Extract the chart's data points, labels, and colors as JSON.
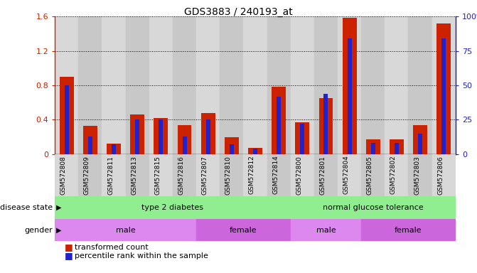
{
  "title": "GDS3883 / 240193_at",
  "samples": [
    "GSM572808",
    "GSM572809",
    "GSM572811",
    "GSM572813",
    "GSM572815",
    "GSM572816",
    "GSM572807",
    "GSM572810",
    "GSM572812",
    "GSM572814",
    "GSM572800",
    "GSM572801",
    "GSM572804",
    "GSM572805",
    "GSM572802",
    "GSM572803",
    "GSM572806"
  ],
  "red_values": [
    0.9,
    0.33,
    0.12,
    0.46,
    0.42,
    0.34,
    0.48,
    0.2,
    0.07,
    0.78,
    0.37,
    0.65,
    1.58,
    0.17,
    0.17,
    0.34,
    1.52
  ],
  "blue_pct": [
    50,
    13,
    7,
    25,
    25,
    13,
    25,
    7,
    4,
    42,
    22,
    44,
    84,
    8,
    8,
    15,
    84
  ],
  "ylim_left": [
    0,
    1.6
  ],
  "ylim_right": [
    0,
    100
  ],
  "yticks_left": [
    0,
    0.4,
    0.8,
    1.2,
    1.6
  ],
  "yticks_right": [
    0,
    25,
    50,
    75,
    100
  ],
  "ytick_labels_left": [
    "0",
    "0.4",
    "0.8",
    "1.2",
    "1.6"
  ],
  "ytick_labels_right": [
    "0",
    "25",
    "50",
    "75",
    "100%"
  ],
  "red_color": "#CC2200",
  "blue_color": "#2222CC",
  "legend_items": [
    "transformed count",
    "percentile rank within the sample"
  ],
  "bar_bg_colors": [
    "#D8D8D8",
    "#C8C8C8"
  ],
  "ds_color": "#90EE90",
  "gender_color_male": "#DD77DD",
  "gender_color_female": "#CC55CC",
  "label_row_bg": "#D0D0D0"
}
